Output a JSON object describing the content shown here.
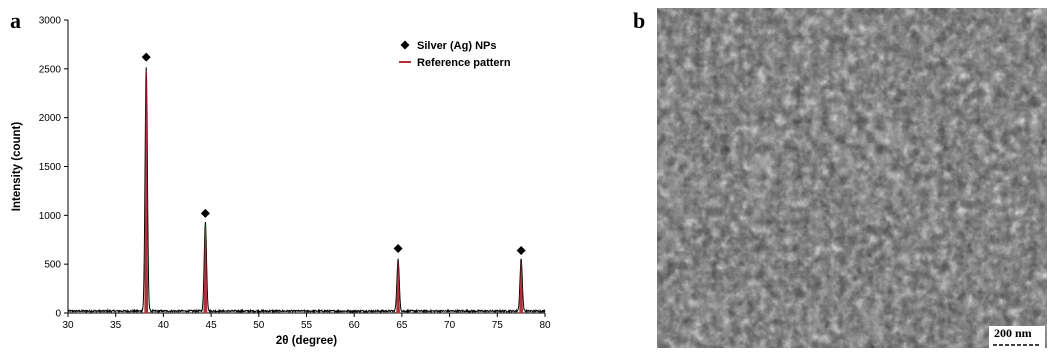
{
  "panels": {
    "a": "a",
    "b": "b"
  },
  "chart_data": {
    "type": "line",
    "xlabel": "2θ (degree)",
    "ylabel": "Intensity (count)",
    "xlim": [
      30,
      80
    ],
    "ylim": [
      0,
      3000
    ],
    "xticks": [
      30,
      35,
      40,
      45,
      50,
      55,
      60,
      65,
      70,
      75,
      80
    ],
    "yticks": [
      0,
      500,
      1000,
      1500,
      2000,
      2500,
      3000
    ],
    "grid": false,
    "legend_position": "top-right",
    "series": [
      {
        "name": "Silver (Ag) NPs",
        "color": "#000000",
        "marker": "diamond",
        "peaks": [
          {
            "x": 38.2,
            "y": 2520
          },
          {
            "x": 44.4,
            "y": 930
          },
          {
            "x": 64.6,
            "y": 550
          },
          {
            "x": 77.5,
            "y": 550
          }
        ],
        "baseline": 20
      },
      {
        "name": "Reference pattern",
        "color": "#b0303a",
        "peaks": [
          {
            "x": 38.2,
            "y": 2480
          },
          {
            "x": 44.4,
            "y": 900
          },
          {
            "x": 64.6,
            "y": 520
          },
          {
            "x": 77.5,
            "y": 520
          }
        ]
      }
    ],
    "peak_markers": [
      {
        "x": 38.2,
        "y": 2620
      },
      {
        "x": 44.4,
        "y": 1020
      },
      {
        "x": 64.6,
        "y": 660
      },
      {
        "x": 77.5,
        "y": 640
      }
    ]
  },
  "sem": {
    "scalebar": "200 nm"
  }
}
